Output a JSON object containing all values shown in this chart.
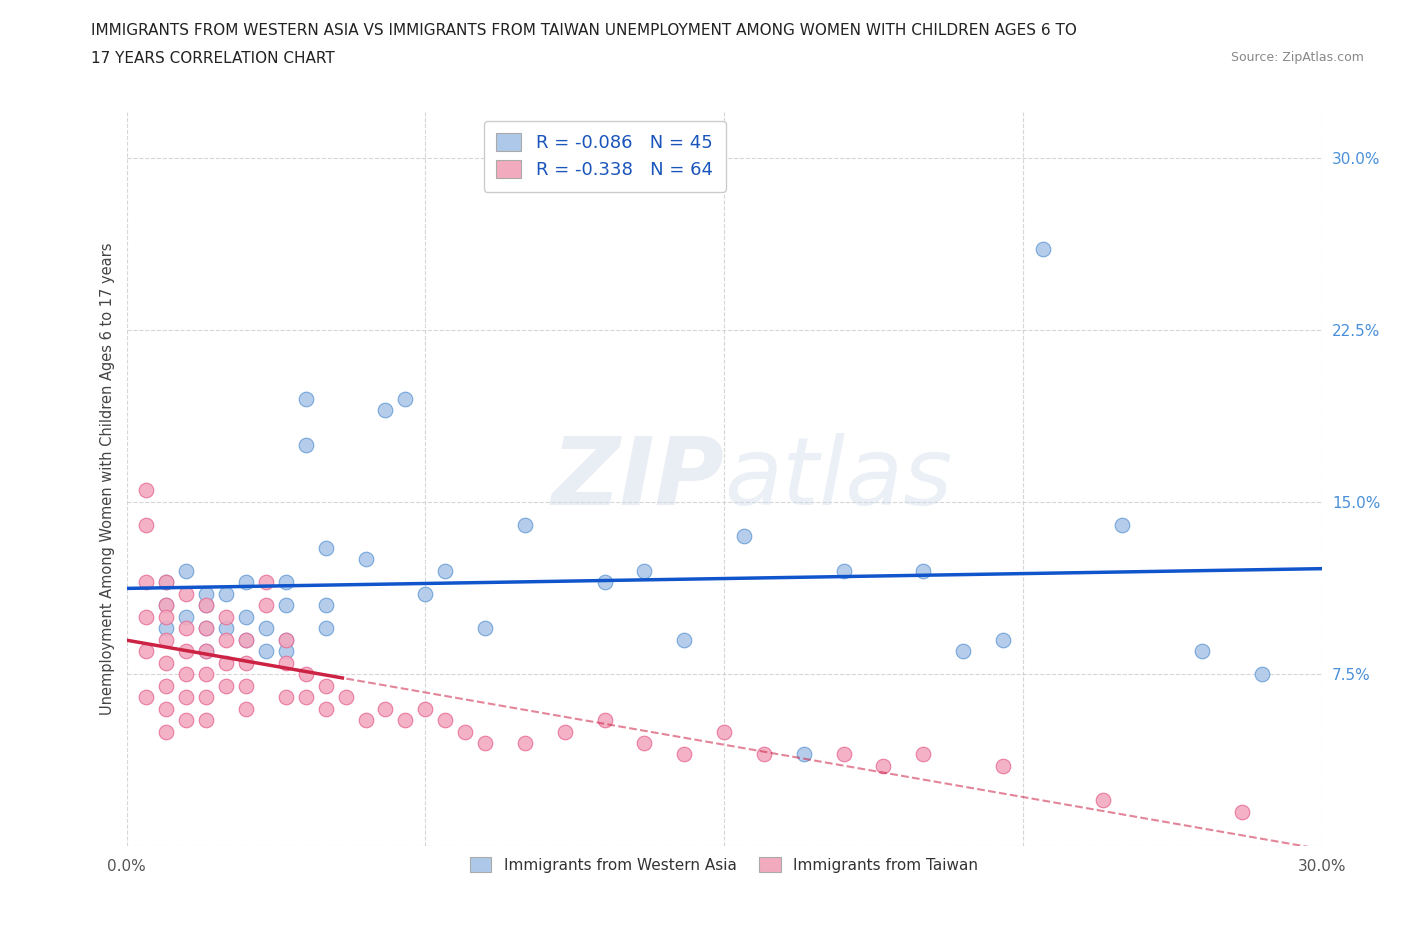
{
  "title_line1": "IMMIGRANTS FROM WESTERN ASIA VS IMMIGRANTS FROM TAIWAN UNEMPLOYMENT AMONG WOMEN WITH CHILDREN AGES 6 TO",
  "title_line2": "17 YEARS CORRELATION CHART",
  "source": "Source: ZipAtlas.com",
  "ylabel": "Unemployment Among Women with Children Ages 6 to 17 years",
  "xlim": [
    0.0,
    0.3
  ],
  "ylim": [
    0.0,
    0.32
  ],
  "ytick_labels_right": [
    "7.5%",
    "15.0%",
    "22.5%",
    "30.0%"
  ],
  "ytick_positions_right": [
    0.075,
    0.15,
    0.225,
    0.3
  ],
  "grid_color": "#cccccc",
  "background_color": "#ffffff",
  "legend_R1": "-0.086",
  "legend_N1": "45",
  "legend_R2": "-0.338",
  "legend_N2": "64",
  "series1_label": "Immigrants from Western Asia",
  "series2_label": "Immigrants from Taiwan",
  "series1_color": "#adc8e8",
  "series2_color": "#f2aabf",
  "series1_edge_color": "#6a9fd8",
  "series2_edge_color": "#e87098",
  "series1_line_color": "#1155cc",
  "series2_line_color": "#cc2244",
  "wa_x": [
    0.01,
    0.01,
    0.01,
    0.015,
    0.015,
    0.02,
    0.02,
    0.02,
    0.025,
    0.025,
    0.03,
    0.03,
    0.035,
    0.04,
    0.04,
    0.04,
    0.045,
    0.045,
    0.05,
    0.05,
    0.02,
    0.03,
    0.035,
    0.04,
    0.05,
    0.06,
    0.065,
    0.07,
    0.075,
    0.08,
    0.09,
    0.1,
    0.12,
    0.13,
    0.14,
    0.155,
    0.17,
    0.18,
    0.2,
    0.21,
    0.22,
    0.23,
    0.25,
    0.27,
    0.285
  ],
  "wa_y": [
    0.115,
    0.105,
    0.095,
    0.12,
    0.1,
    0.105,
    0.095,
    0.085,
    0.11,
    0.095,
    0.115,
    0.09,
    0.095,
    0.105,
    0.09,
    0.085,
    0.195,
    0.175,
    0.13,
    0.105,
    0.11,
    0.1,
    0.085,
    0.115,
    0.095,
    0.125,
    0.19,
    0.195,
    0.11,
    0.12,
    0.095,
    0.14,
    0.115,
    0.12,
    0.09,
    0.135,
    0.04,
    0.12,
    0.12,
    0.085,
    0.09,
    0.26,
    0.14,
    0.085,
    0.075
  ],
  "tw_x": [
    0.005,
    0.005,
    0.005,
    0.005,
    0.005,
    0.005,
    0.01,
    0.01,
    0.01,
    0.01,
    0.01,
    0.01,
    0.01,
    0.01,
    0.015,
    0.015,
    0.015,
    0.015,
    0.015,
    0.015,
    0.02,
    0.02,
    0.02,
    0.02,
    0.02,
    0.02,
    0.025,
    0.025,
    0.025,
    0.025,
    0.03,
    0.03,
    0.03,
    0.03,
    0.035,
    0.035,
    0.04,
    0.04,
    0.04,
    0.045,
    0.045,
    0.05,
    0.05,
    0.055,
    0.06,
    0.065,
    0.07,
    0.075,
    0.08,
    0.085,
    0.09,
    0.1,
    0.11,
    0.12,
    0.13,
    0.14,
    0.15,
    0.16,
    0.18,
    0.19,
    0.2,
    0.22,
    0.245,
    0.28
  ],
  "tw_y": [
    0.155,
    0.14,
    0.115,
    0.1,
    0.085,
    0.065,
    0.115,
    0.105,
    0.1,
    0.09,
    0.08,
    0.07,
    0.06,
    0.05,
    0.11,
    0.095,
    0.085,
    0.075,
    0.065,
    0.055,
    0.105,
    0.095,
    0.085,
    0.075,
    0.065,
    0.055,
    0.1,
    0.09,
    0.08,
    0.07,
    0.09,
    0.08,
    0.07,
    0.06,
    0.115,
    0.105,
    0.09,
    0.08,
    0.065,
    0.075,
    0.065,
    0.07,
    0.06,
    0.065,
    0.055,
    0.06,
    0.055,
    0.06,
    0.055,
    0.05,
    0.045,
    0.045,
    0.05,
    0.055,
    0.045,
    0.04,
    0.05,
    0.04,
    0.04,
    0.035,
    0.04,
    0.035,
    0.02,
    0.015
  ]
}
